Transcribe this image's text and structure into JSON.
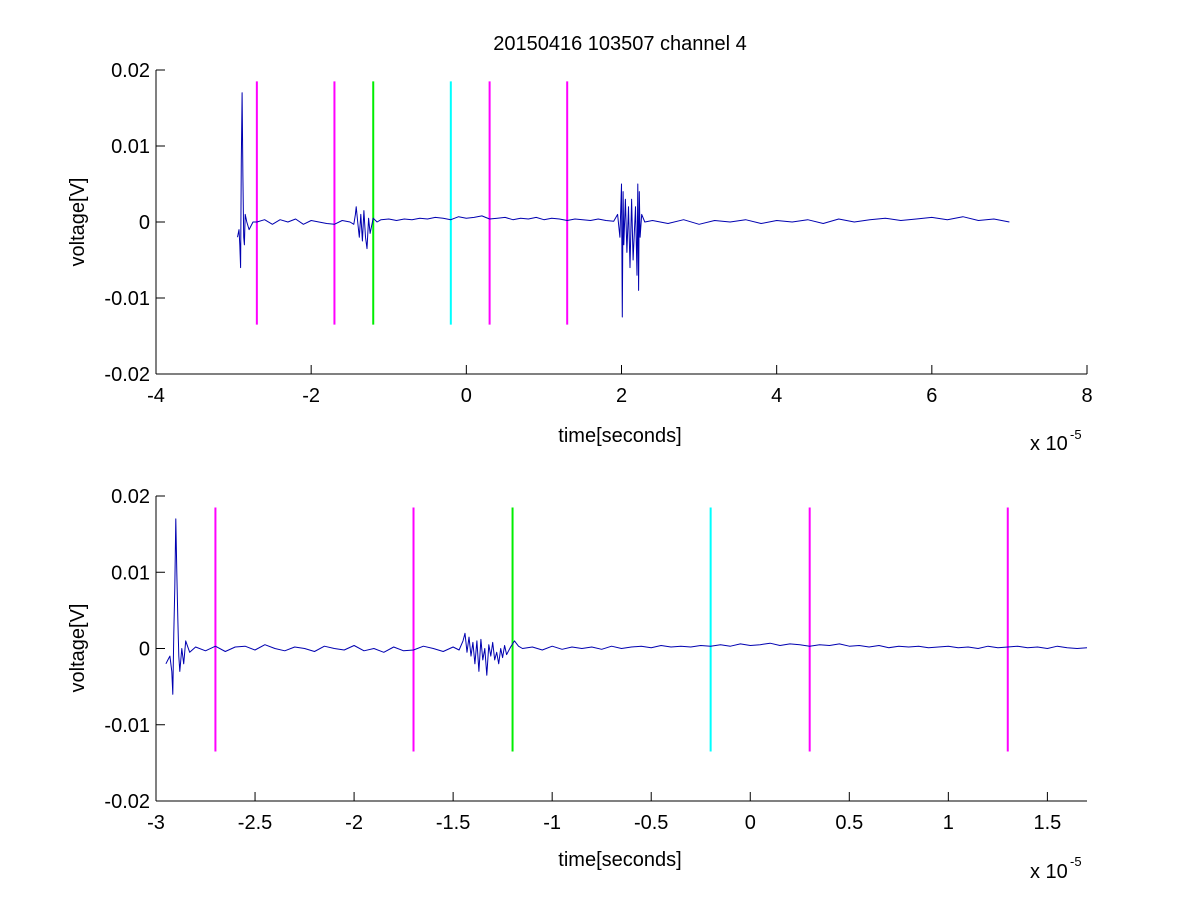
{
  "title": "20150416 103507 channel 4",
  "colors": {
    "signal": "#0000b0",
    "magenta": "#ff00ff",
    "green": "#00ee00",
    "cyan": "#00ffff",
    "axis": "#000000"
  },
  "chart_data": [
    {
      "type": "line",
      "title": "20150416 103507 channel 4",
      "xlabel": "time[seconds]",
      "ylabel": "voltage[V]",
      "x_exponent_label": "x 10",
      "x_exponent": "-5",
      "xlim": [
        -4,
        8
      ],
      "ylim": [
        -0.02,
        0.02
      ],
      "x_ticks": [
        -4,
        -2,
        0,
        2,
        4,
        6,
        8
      ],
      "x_tick_labels": [
        "-4",
        "-2",
        "0",
        "2",
        "4",
        "6",
        "8"
      ],
      "y_ticks": [
        -0.02,
        -0.01,
        0,
        0.01,
        0.02
      ],
      "y_tick_labels": [
        "-0.02",
        "-0.01",
        "0",
        "0.01",
        "0.02"
      ],
      "grid": false,
      "markers": [
        {
          "x": -2.7,
          "y0": -0.0135,
          "y1": 0.0185,
          "color": "magenta"
        },
        {
          "x": -1.7,
          "y0": -0.0135,
          "y1": 0.0185,
          "color": "magenta"
        },
        {
          "x": -1.2,
          "y0": -0.0135,
          "y1": 0.0185,
          "color": "green"
        },
        {
          "x": -0.2,
          "y0": -0.0135,
          "y1": 0.0185,
          "color": "cyan"
        },
        {
          "x": 0.3,
          "y0": -0.0135,
          "y1": 0.0185,
          "color": "magenta"
        },
        {
          "x": 1.3,
          "y0": -0.0135,
          "y1": 0.0185,
          "color": "magenta"
        }
      ],
      "series": [
        {
          "color": "signal",
          "x": [
            -2.95,
            -2.93,
            -2.92,
            -2.91,
            -2.9,
            -2.89,
            -2.88,
            -2.87,
            -2.86,
            -2.85,
            -2.83,
            -2.8,
            -2.75,
            -2.7,
            -2.6,
            -2.5,
            -2.4,
            -2.3,
            -2.2,
            -2.1,
            -2.0,
            -1.9,
            -1.8,
            -1.7,
            -1.6,
            -1.5,
            -1.45,
            -1.43,
            -1.42,
            -1.4,
            -1.38,
            -1.36,
            -1.34,
            -1.32,
            -1.3,
            -1.28,
            -1.26,
            -1.24,
            -1.2,
            -1.15,
            -1.1,
            -1.0,
            -0.9,
            -0.8,
            -0.7,
            -0.6,
            -0.5,
            -0.4,
            -0.3,
            -0.2,
            -0.1,
            0.0,
            0.1,
            0.2,
            0.3,
            0.4,
            0.5,
            0.6,
            0.7,
            0.8,
            0.9,
            1.0,
            1.1,
            1.2,
            1.3,
            1.4,
            1.5,
            1.6,
            1.7,
            1.8,
            1.9,
            1.95,
            1.98,
            2.0,
            2.01,
            2.02,
            2.03,
            2.05,
            2.07,
            2.09,
            2.11,
            2.13,
            2.15,
            2.18,
            2.2,
            2.21,
            2.22,
            2.23,
            2.24,
            2.26,
            2.3,
            2.4,
            2.6,
            2.8,
            3.0,
            3.2,
            3.4,
            3.6,
            3.8,
            4.0,
            4.2,
            4.4,
            4.6,
            4.8,
            5.0,
            5.2,
            5.4,
            5.6,
            5.8,
            6.0,
            6.2,
            6.4,
            6.6,
            6.8,
            7.0
          ],
          "values": [
            -0.002,
            -0.001,
            -0.003,
            -0.006,
            0.008,
            0.017,
            0.006,
            -0.002,
            -0.003,
            0.001,
            0.0,
            -0.001,
            0.0,
            0.0,
            0.0003,
            -0.0003,
            0.0003,
            0.0,
            0.0004,
            -0.0003,
            0.0002,
            0.0,
            -0.0002,
            -0.0003,
            0.0002,
            0.0,
            -0.0003,
            0.001,
            0.002,
            0.0,
            -0.002,
            0.001,
            -0.0025,
            0.0015,
            -0.002,
            -0.0035,
            0.0005,
            -0.0015,
            0.0005,
            0.0,
            0.0003,
            0.0004,
            0.0002,
            0.0004,
            0.0003,
            0.0005,
            0.0004,
            0.0006,
            0.0005,
            0.0003,
            0.0007,
            0.0005,
            0.0006,
            0.0008,
            0.0004,
            0.0005,
            0.0006,
            0.0003,
            0.0005,
            0.0004,
            0.0006,
            0.0003,
            0.0005,
            0.0004,
            0.0002,
            0.0004,
            0.0003,
            0.0002,
            0.0004,
            0.0002,
            0.0001,
            0.001,
            -0.002,
            0.005,
            -0.0125,
            0.004,
            -0.003,
            0.003,
            -0.004,
            0.002,
            -0.006,
            0.003,
            -0.005,
            0.002,
            -0.007,
            0.005,
            -0.009,
            0.004,
            -0.002,
            0.001,
            0.0,
            0.0002,
            -0.0002,
            0.0003,
            -0.0003,
            0.0002,
            0.0,
            0.0003,
            -0.0002,
            0.0002,
            0.0,
            0.0003,
            -0.0002,
            0.0004,
            0.0,
            0.0003,
            0.0005,
            0.0002,
            0.0004,
            0.0006,
            0.0003,
            0.0007,
            0.0002,
            0.0004,
            0.0
          ]
        }
      ]
    },
    {
      "type": "line",
      "xlabel": "time[seconds]",
      "ylabel": "voltage[V]",
      "x_exponent_label": "x 10",
      "x_exponent": "-5",
      "xlim": [
        -3.0,
        1.7
      ],
      "ylim": [
        -0.02,
        0.02
      ],
      "x_ticks": [
        -3,
        -2.5,
        -2,
        -1.5,
        -1,
        -0.5,
        0,
        0.5,
        1,
        1.5
      ],
      "x_tick_labels": [
        "-3",
        "-2.5",
        "-2",
        "-1.5",
        "-1",
        "-0.5",
        "0",
        "0.5",
        "1",
        "1.5"
      ],
      "y_ticks": [
        -0.02,
        -0.01,
        0,
        0.01,
        0.02
      ],
      "y_tick_labels": [
        "-0.02",
        "-0.01",
        "0",
        "0.01",
        "0.02"
      ],
      "grid": false,
      "markers": [
        {
          "x": -2.7,
          "y0": -0.0135,
          "y1": 0.0185,
          "color": "magenta"
        },
        {
          "x": -1.7,
          "y0": -0.0135,
          "y1": 0.0185,
          "color": "magenta"
        },
        {
          "x": -1.2,
          "y0": -0.0135,
          "y1": 0.0185,
          "color": "green"
        },
        {
          "x": -0.2,
          "y0": -0.0135,
          "y1": 0.0185,
          "color": "cyan"
        },
        {
          "x": 0.3,
          "y0": -0.0135,
          "y1": 0.0185,
          "color": "magenta"
        },
        {
          "x": 1.3,
          "y0": -0.0135,
          "y1": 0.0185,
          "color": "magenta"
        }
      ],
      "series": [
        {
          "color": "signal",
          "x": [
            -2.95,
            -2.94,
            -2.93,
            -2.92,
            -2.915,
            -2.91,
            -2.905,
            -2.9,
            -2.895,
            -2.89,
            -2.885,
            -2.88,
            -2.87,
            -2.86,
            -2.85,
            -2.83,
            -2.8,
            -2.75,
            -2.7,
            -2.65,
            -2.6,
            -2.55,
            -2.5,
            -2.45,
            -2.4,
            -2.35,
            -2.3,
            -2.25,
            -2.2,
            -2.15,
            -2.1,
            -2.05,
            -2.0,
            -1.95,
            -1.9,
            -1.85,
            -1.8,
            -1.75,
            -1.7,
            -1.65,
            -1.6,
            -1.55,
            -1.5,
            -1.47,
            -1.45,
            -1.44,
            -1.43,
            -1.42,
            -1.41,
            -1.4,
            -1.39,
            -1.38,
            -1.37,
            -1.36,
            -1.35,
            -1.34,
            -1.33,
            -1.32,
            -1.31,
            -1.3,
            -1.29,
            -1.28,
            -1.27,
            -1.26,
            -1.25,
            -1.24,
            -1.23,
            -1.21,
            -1.19,
            -1.17,
            -1.15,
            -1.1,
            -1.05,
            -1.0,
            -0.95,
            -0.9,
            -0.85,
            -0.8,
            -0.75,
            -0.7,
            -0.65,
            -0.6,
            -0.55,
            -0.5,
            -0.45,
            -0.4,
            -0.35,
            -0.3,
            -0.25,
            -0.2,
            -0.15,
            -0.1,
            -0.05,
            0.0,
            0.05,
            0.1,
            0.15,
            0.2,
            0.25,
            0.3,
            0.35,
            0.4,
            0.45,
            0.5,
            0.55,
            0.6,
            0.65,
            0.7,
            0.75,
            0.8,
            0.85,
            0.9,
            0.95,
            1.0,
            1.05,
            1.1,
            1.15,
            1.2,
            1.25,
            1.3,
            1.35,
            1.4,
            1.45,
            1.5,
            1.55,
            1.6,
            1.65,
            1.7
          ],
          "values": [
            -0.002,
            -0.0015,
            -0.001,
            -0.003,
            -0.006,
            0.002,
            0.008,
            0.017,
            0.01,
            0.004,
            -0.001,
            -0.003,
            0.0,
            -0.002,
            0.001,
            -0.0005,
            0.0002,
            -0.0003,
            0.0003,
            -0.0004,
            0.0002,
            0.0003,
            -0.0002,
            0.0005,
            0.0,
            -0.0003,
            0.0002,
            0.0,
            -0.0004,
            0.0003,
            0.0,
            -0.0002,
            0.0004,
            -0.0003,
            0.0,
            -0.0005,
            0.0002,
            -0.0003,
            -0.0002,
            0.0003,
            0.0,
            -0.0004,
            0.0002,
            -0.0002,
            0.001,
            0.002,
            -0.0005,
            0.0015,
            -0.001,
            0.0008,
            -0.002,
            0.001,
            -0.003,
            0.0012,
            -0.0015,
            0.0,
            -0.0035,
            0.0005,
            -0.001,
            0.0008,
            -0.0015,
            -0.0005,
            -0.002,
            0.0,
            -0.0012,
            0.0004,
            -0.0008,
            0.0002,
            0.001,
            0.0003,
            0.0,
            0.0002,
            -0.0002,
            0.0003,
            -0.0001,
            0.0002,
            0.0,
            0.0002,
            -0.0001,
            0.0003,
            0.0,
            0.0002,
            0.0003,
            0.0001,
            0.0004,
            0.0002,
            0.0003,
            0.0002,
            0.0004,
            0.0003,
            0.0005,
            0.0003,
            0.0006,
            0.0004,
            0.0005,
            0.0007,
            0.0004,
            0.0006,
            0.0005,
            0.0003,
            0.0005,
            0.0004,
            0.0006,
            0.0003,
            0.0004,
            0.0002,
            0.0004,
            0.0001,
            0.0003,
            0.0002,
            0.0003,
            0.0001,
            0.0002,
            0.0003,
            0.0001,
            0.0002,
            0.0,
            0.0003,
            0.0001,
            0.0002,
            0.0003,
            0.0001,
            0.0002,
            0.0,
            0.0003,
            0.0001,
            0.0,
            0.0001
          ]
        }
      ]
    }
  ]
}
